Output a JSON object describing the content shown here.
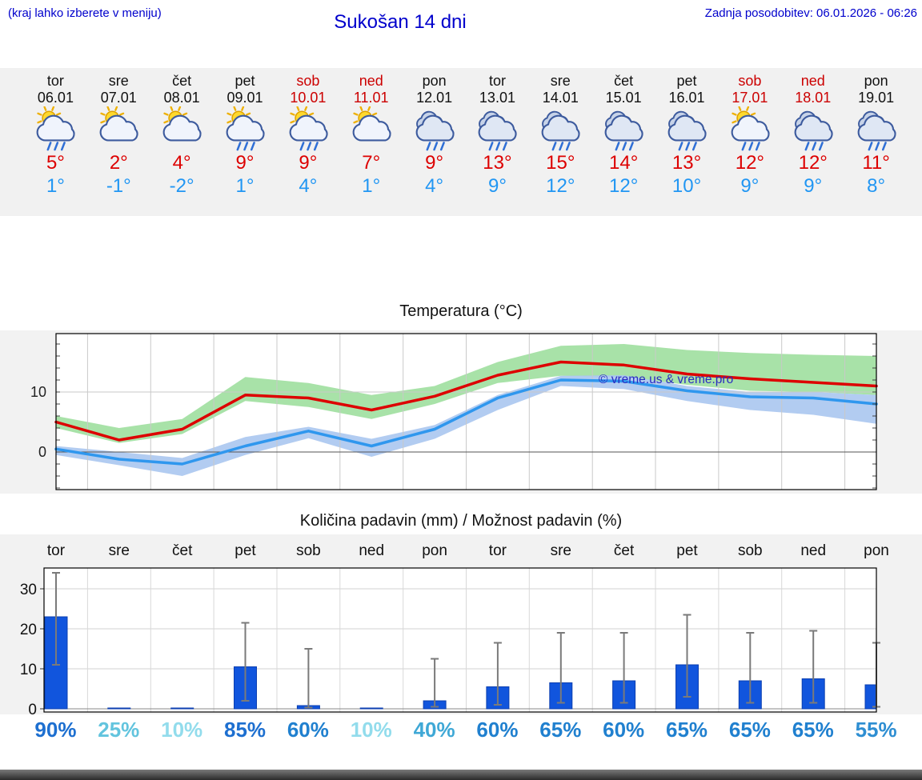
{
  "header": {
    "hint": "(kraj lahko izberete v meniju)",
    "title": "Sukošan 14 dni",
    "updated": "Zadnja posodobitev: 06.01.2026 - 06:26"
  },
  "colors": {
    "link_blue": "#0000cc",
    "weekend_red": "#cc0000",
    "temp_max": "#dd0000",
    "temp_min": "#2196f3",
    "strip_bg": "#f1f1f1",
    "chart_bg": "#f2f2f2",
    "bar_blue": "#1155dd",
    "watermark_blue": "#2a2ac0"
  },
  "days": [
    {
      "name": "tor",
      "date": "06.01",
      "weekend": false,
      "icon": "sun-cloud-rain",
      "tmax": "5°",
      "tmin": "1°"
    },
    {
      "name": "sre",
      "date": "07.01",
      "weekend": false,
      "icon": "sun-cloud",
      "tmax": "2°",
      "tmin": "-1°"
    },
    {
      "name": "čet",
      "date": "08.01",
      "weekend": false,
      "icon": "sun-cloud",
      "tmax": "4°",
      "tmin": "-2°"
    },
    {
      "name": "pet",
      "date": "09.01",
      "weekend": false,
      "icon": "sun-cloud-rain",
      "tmax": "9°",
      "tmin": "1°"
    },
    {
      "name": "sob",
      "date": "10.01",
      "weekend": true,
      "icon": "sun-cloud-rain",
      "tmax": "9°",
      "tmin": "4°"
    },
    {
      "name": "ned",
      "date": "11.01",
      "weekend": true,
      "icon": "sun-cloud",
      "tmax": "7°",
      "tmin": "1°"
    },
    {
      "name": "pon",
      "date": "12.01",
      "weekend": false,
      "icon": "cloud-rain",
      "tmax": "9°",
      "tmin": "4°"
    },
    {
      "name": "tor",
      "date": "13.01",
      "weekend": false,
      "icon": "cloud-rain",
      "tmax": "13°",
      "tmin": "9°"
    },
    {
      "name": "sre",
      "date": "14.01",
      "weekend": false,
      "icon": "cloud-rain",
      "tmax": "15°",
      "tmin": "12°"
    },
    {
      "name": "čet",
      "date": "15.01",
      "weekend": false,
      "icon": "cloud-rain",
      "tmax": "14°",
      "tmin": "12°"
    },
    {
      "name": "pet",
      "date": "16.01",
      "weekend": false,
      "icon": "cloud-rain",
      "tmax": "13°",
      "tmin": "10°"
    },
    {
      "name": "sob",
      "date": "17.01",
      "weekend": true,
      "icon": "sun-cloud-rain",
      "tmax": "12°",
      "tmin": "9°"
    },
    {
      "name": "ned",
      "date": "18.01",
      "weekend": true,
      "icon": "cloud-rain",
      "tmax": "12°",
      "tmin": "9°"
    },
    {
      "name": "pon",
      "date": "19.01",
      "weekend": false,
      "icon": "cloud-rain",
      "tmax": "11°",
      "tmin": "8°"
    }
  ],
  "chart_data": [
    {
      "id": "temperature",
      "type": "line",
      "title": "Temperatura (°C)",
      "watermark": "© vreme.us & vreme.pro",
      "categories": [
        "tor",
        "sre",
        "čet",
        "pet",
        "sob",
        "ned",
        "pon",
        "tor",
        "sre",
        "čet",
        "pet",
        "sob",
        "ned",
        "pon"
      ],
      "series": [
        {
          "name": "max temperature",
          "color": "#dd0000",
          "values": [
            5,
            2,
            3.8,
            9.5,
            9,
            7,
            9.3,
            12.8,
            15,
            14.5,
            13,
            12.2,
            11.6,
            11
          ]
        },
        {
          "name": "min temperature",
          "color": "#2f97ee",
          "values": [
            0.5,
            -1.2,
            -2,
            1,
            3.5,
            1,
            3.8,
            9,
            12,
            11.8,
            10.2,
            9.2,
            9,
            8
          ]
        }
      ],
      "bands": [
        {
          "name": "max range",
          "color": "#9fdf9f",
          "hi": [
            6,
            4,
            5.5,
            12.5,
            11.5,
            9.5,
            11,
            15,
            17.7,
            18,
            17,
            16.5,
            16.2,
            16
          ],
          "lo": [
            4,
            1.5,
            3,
            8.5,
            7.5,
            5.5,
            8,
            11.5,
            12.7,
            12.5,
            11.2,
            10.2,
            10,
            9.5
          ]
        },
        {
          "name": "min range",
          "color": "#aac6f0",
          "hi": [
            1,
            0,
            -1,
            2.5,
            4.2,
            2.2,
            4.5,
            9.5,
            12.7,
            12.8,
            11,
            10,
            10,
            9.5
          ],
          "lo": [
            -0.5,
            -2.2,
            -4,
            -0.5,
            2.3,
            -0.8,
            2.2,
            7,
            11,
            10.5,
            8.5,
            7,
            6.2,
            4.7
          ]
        }
      ],
      "ylim": [
        -6.3,
        19.7
      ],
      "yticks": [
        0,
        10
      ],
      "grid": true
    },
    {
      "id": "precipitation",
      "type": "bar",
      "title": "Količina padavin (mm) / Možnost padavin (%)",
      "categories": [
        "tor",
        "sre",
        "čet",
        "pet",
        "sob",
        "ned",
        "pon",
        "tor",
        "sre",
        "čet",
        "pet",
        "sob",
        "ned",
        "pon"
      ],
      "values": [
        23,
        0.2,
        0.1,
        10.5,
        0.8,
        0.1,
        2,
        5.5,
        6.5,
        7,
        11,
        7,
        7.5,
        6
      ],
      "whisker_hi": [
        34,
        0.5,
        0.3,
        21.5,
        15,
        0.3,
        12.5,
        16.5,
        19,
        19,
        23.5,
        19,
        19.5,
        16.5
      ],
      "whisker_lo": [
        11,
        0,
        0,
        2,
        0.3,
        0,
        0.5,
        1,
        1.5,
        1.5,
        3,
        1.5,
        1.5,
        0.5
      ],
      "bar_color": "#1155dd",
      "ylim": [
        0,
        36
      ],
      "yticks": [
        0,
        10,
        20,
        30
      ],
      "grid": true,
      "probabilities": [
        {
          "label": "90%",
          "color": "#1d6fd0"
        },
        {
          "label": "25%",
          "color": "#62c4de"
        },
        {
          "label": "10%",
          "color": "#92dcec"
        },
        {
          "label": "85%",
          "color": "#1d6fd0"
        },
        {
          "label": "60%",
          "color": "#2080cf"
        },
        {
          "label": "10%",
          "color": "#92dcec"
        },
        {
          "label": "40%",
          "color": "#3fa8d6"
        },
        {
          "label": "60%",
          "color": "#2080cf"
        },
        {
          "label": "65%",
          "color": "#2080cf"
        },
        {
          "label": "60%",
          "color": "#2080cf"
        },
        {
          "label": "65%",
          "color": "#2080cf"
        },
        {
          "label": "65%",
          "color": "#2080cf"
        },
        {
          "label": "65%",
          "color": "#2080cf"
        },
        {
          "label": "55%",
          "color": "#2e8ed2"
        }
      ]
    }
  ]
}
